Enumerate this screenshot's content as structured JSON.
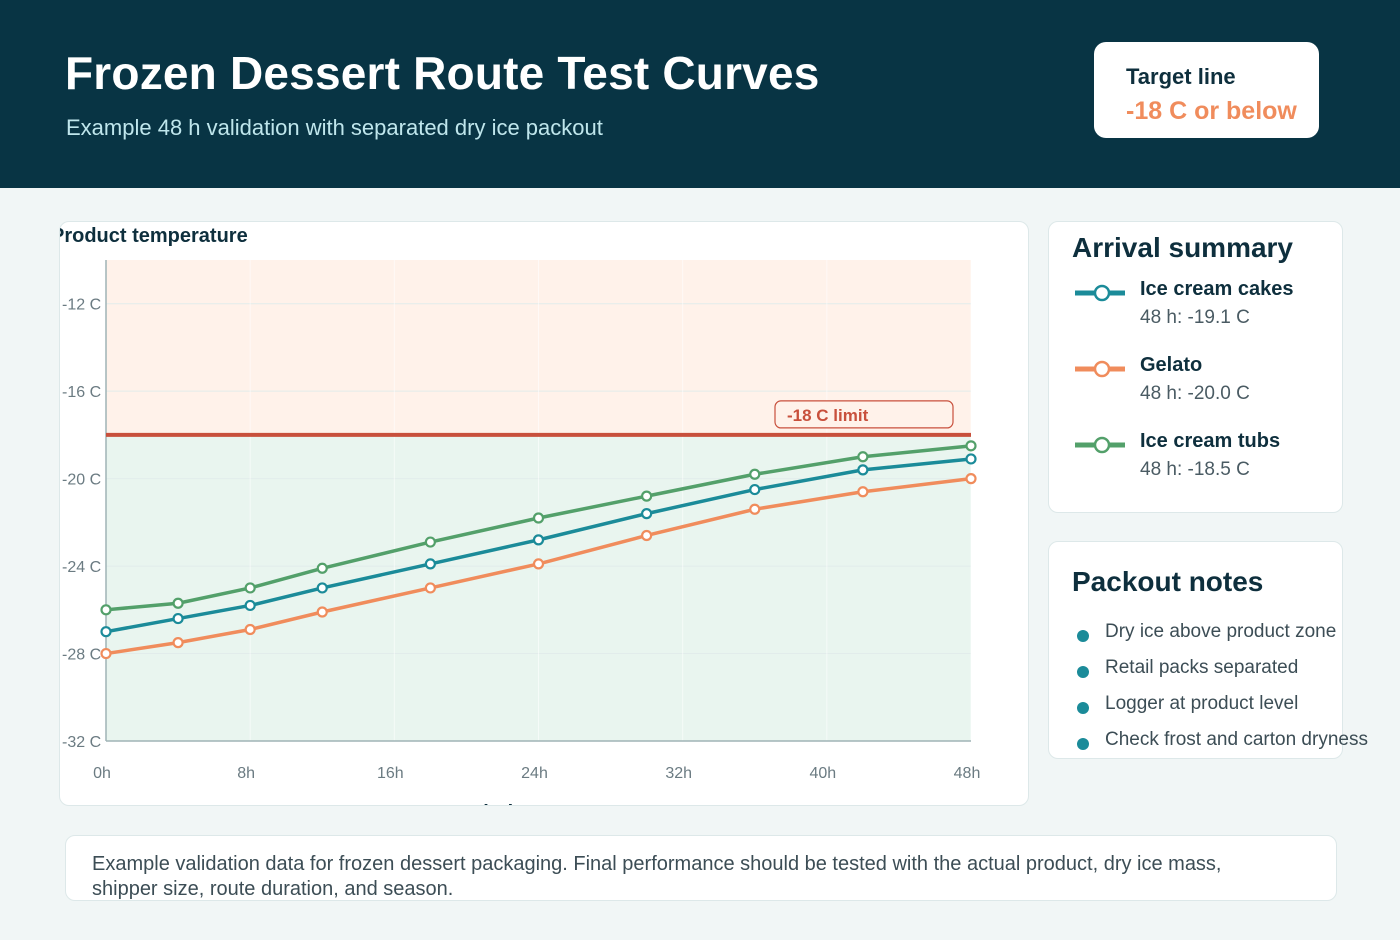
{
  "header": {
    "title": "Frozen Dessert Route Test Curves",
    "subtitle": "Example 48 h validation with separated dry ice packout",
    "target_label": "Target line",
    "target_value": "-18 C or below",
    "background_color": "#083444",
    "accent_color": "#f08c5c"
  },
  "chart_data": {
    "type": "line",
    "ylabel": "Product temperature",
    "xlabel": "Transit time",
    "x": [
      0,
      4,
      8,
      12,
      18,
      24,
      30,
      36,
      42,
      48
    ],
    "x_ticks": [
      0,
      8,
      16,
      24,
      32,
      40,
      48
    ],
    "x_tick_labels": [
      "0h",
      "8h",
      "16h",
      "24h",
      "32h",
      "40h",
      "48h"
    ],
    "y_ticks": [
      -12,
      -16,
      -20,
      -24,
      -28,
      -32
    ],
    "y_tick_labels": [
      "-12 C",
      "-16 C",
      "-20 C",
      "-24 C",
      "-28 C",
      "-32 C"
    ],
    "xlim": [
      0,
      48
    ],
    "ylim": [
      -32,
      -10
    ],
    "grid": true,
    "threshold": {
      "value": -18,
      "label": "-18 C limit",
      "color": "#c8503c"
    },
    "zones": [
      {
        "from": -18,
        "to": -10,
        "color": "#fff2ea"
      },
      {
        "from": -32,
        "to": -18,
        "color": "#e9f5ef"
      }
    ],
    "series": [
      {
        "name": "Ice cream cakes",
        "color": "#1b8b99",
        "values": [
          -27.0,
          -26.4,
          -25.8,
          -25.0,
          -23.9,
          -22.8,
          -21.6,
          -20.5,
          -19.6,
          -19.1
        ]
      },
      {
        "name": "Gelato",
        "color": "#f08c5c",
        "values": [
          -28.0,
          -27.5,
          -26.9,
          -26.1,
          -25.0,
          -23.9,
          -22.6,
          -21.4,
          -20.6,
          -20.0
        ]
      },
      {
        "name": "Ice cream tubs",
        "color": "#53a06a",
        "values": [
          -26.0,
          -25.7,
          -25.0,
          -24.1,
          -22.9,
          -21.8,
          -20.8,
          -19.8,
          -19.0,
          -18.5
        ]
      }
    ]
  },
  "summary": {
    "title": "Arrival summary",
    "items": [
      {
        "name": "Ice cream cakes",
        "value": "48 h: -19.1 C",
        "color": "#1b8b99"
      },
      {
        "name": "Gelato",
        "value": "48 h: -20.0 C",
        "color": "#f08c5c"
      },
      {
        "name": "Ice cream tubs",
        "value": "48 h: -18.5 C",
        "color": "#53a06a"
      }
    ]
  },
  "notes": {
    "title": "Packout notes",
    "items": [
      "Dry ice above product zone",
      "Retail packs separated",
      "Logger at product level",
      "Check frost and carton dryness"
    ]
  },
  "footer": {
    "text": "Example validation data for frozen dessert packaging. Final performance should be tested with the actual product, dry ice mass, shipper size, route duration, and season."
  }
}
